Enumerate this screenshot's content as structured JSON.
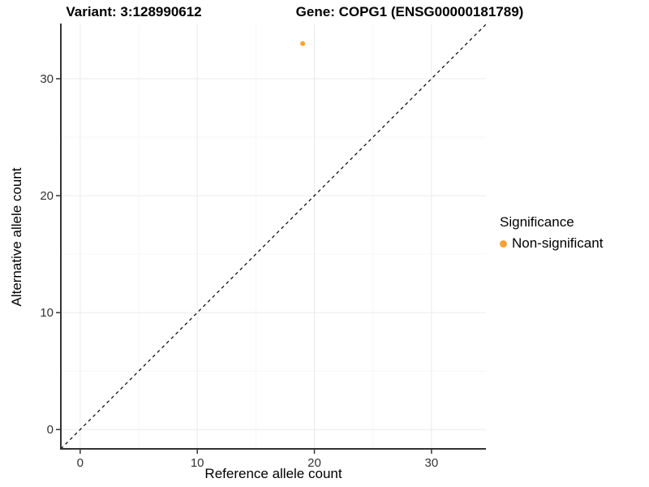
{
  "chart_data": {
    "type": "scatter",
    "title_left": "Variant: 3:128990612",
    "title_right": "Gene: COPG1 (ENSG00000181789)",
    "xlabel": "Reference allele count",
    "ylabel": "Alternative allele count",
    "xlim": [
      -1.65,
      34.65
    ],
    "ylim": [
      -1.65,
      34.65
    ],
    "x_ticks": [
      0,
      10,
      20,
      30
    ],
    "y_ticks": [
      0,
      10,
      20,
      30
    ],
    "x_minor_ticks": [
      5,
      15,
      25
    ],
    "y_minor_ticks": [
      5,
      15,
      25
    ],
    "grid": true,
    "series": [
      {
        "name": "Non-significant",
        "color": "#F9A236",
        "points": [
          {
            "x": 19,
            "y": 33
          }
        ]
      }
    ],
    "reference_line": {
      "type": "identity",
      "style": "dashed",
      "color": "#000000"
    },
    "legend": {
      "position": "right",
      "title": "Significance",
      "entries": [
        {
          "label": "Non-significant",
          "color": "#F9A236"
        }
      ]
    },
    "colors": {
      "axis_line": "#333333",
      "tick_label": "#333333",
      "grid_major": "#EBEBEB",
      "grid_minor": "#F6F6F6",
      "background": "#FFFFFF"
    }
  }
}
